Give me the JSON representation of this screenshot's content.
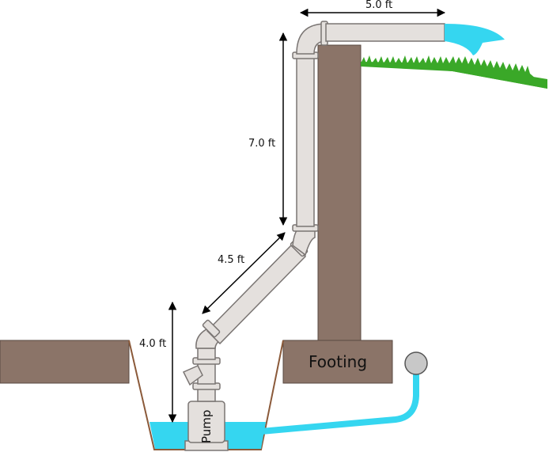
{
  "dimensions": {
    "horizontal_outlet": "5.0 ft",
    "vertical_riser": "7.0 ft",
    "diagonal_run": "4.5 ft",
    "pump_rise": "4.0 ft"
  },
  "labels": {
    "footing": "Footing",
    "pump": "Pump"
  },
  "colors": {
    "soil": "#8b7468",
    "pipe": "#e4e0dd",
    "pipe_stroke": "#7a7573",
    "water": "#35d6f0",
    "grass": "#3aa828"
  }
}
